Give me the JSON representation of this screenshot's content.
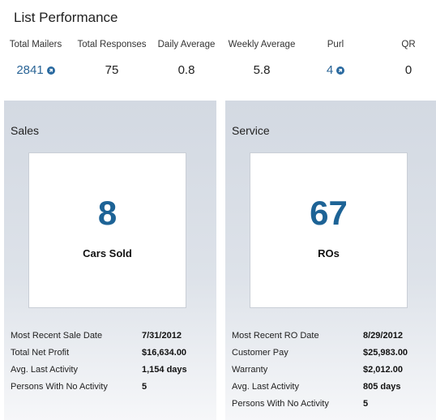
{
  "title": "List Performance",
  "stats": [
    {
      "label": "Total Mailers",
      "value": "2841",
      "link": true
    },
    {
      "label": "Total Responses",
      "value": "75",
      "link": false
    },
    {
      "label": "Daily Average",
      "value": "0.8",
      "link": false
    },
    {
      "label": "Weekly Average",
      "value": "5.8",
      "link": false
    },
    {
      "label": "Purl",
      "value": "4",
      "link": true
    },
    {
      "label": "QR",
      "value": "0",
      "link": false
    }
  ],
  "sales": {
    "title": "Sales",
    "big_value": "8",
    "caption": "Cars Sold",
    "rows": [
      {
        "label": "Most Recent Sale Date",
        "value": "7/31/2012"
      },
      {
        "label": "Total Net Profit",
        "value": "$16,634.00"
      },
      {
        "label": "Avg. Last Activity",
        "value": "1,154 days"
      },
      {
        "label": "Persons With No Activity",
        "value": "5"
      }
    ]
  },
  "service": {
    "title": "Service",
    "big_value": "67",
    "caption": "ROs",
    "rows": [
      {
        "label": "Most Recent RO Date",
        "value": "8/29/2012"
      },
      {
        "label": "Customer Pay",
        "value": "$25,983.00"
      },
      {
        "label": "Warranty",
        "value": "$2,012.00"
      },
      {
        "label": "Avg. Last Activity",
        "value": "805 days"
      },
      {
        "label": "Persons With No Activity",
        "value": "5"
      }
    ]
  },
  "colors": {
    "link": "#2a6496",
    "big_number": "#1d6396",
    "panel_top": "#d3d9e2",
    "panel_bottom": "#f6f7f9"
  }
}
